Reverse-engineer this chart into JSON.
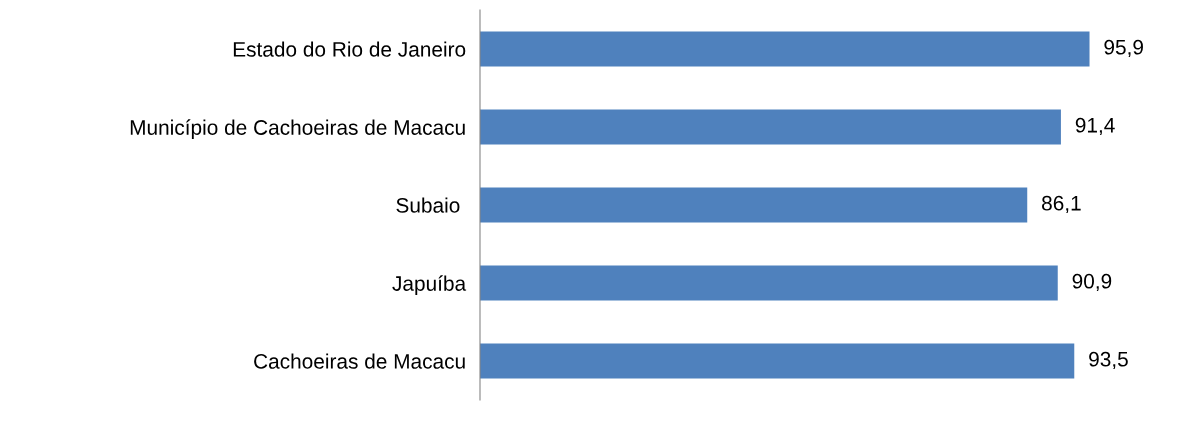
{
  "chart_data": {
    "type": "bar",
    "orientation": "horizontal",
    "categories": [
      "Estado do Rio de Janeiro",
      "Município de Cachoeiras de Macacu",
      "Subaio ",
      "Japuíba",
      "Cachoeiras de Macacu"
    ],
    "values": [
      95.9,
      91.4,
      86.1,
      90.9,
      93.5
    ],
    "value_labels": [
      "95,9",
      "91,4",
      "86,1",
      "90,9",
      "93,5"
    ],
    "color": "#4f81bd",
    "tick_labels": "y",
    "grid": false,
    "legend": false
  }
}
